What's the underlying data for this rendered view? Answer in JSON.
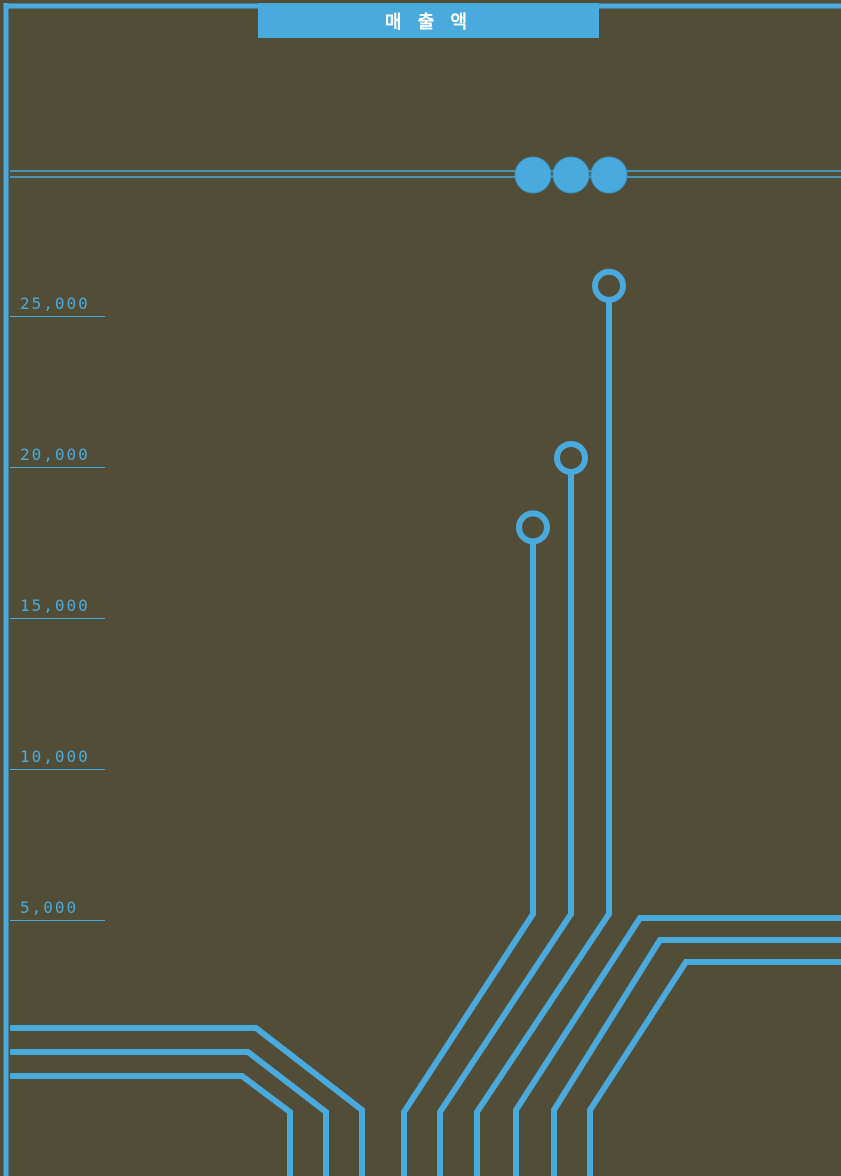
{
  "chart_data": {
    "type": "bar",
    "title": "매 출 액",
    "categories": [
      "",
      "",
      ""
    ],
    "values": [
      18000,
      20300,
      26000
    ],
    "yticks": [
      "5,000",
      "10,000",
      "15,000",
      "20,000",
      "25,000"
    ],
    "ytick_values": [
      5000,
      10000,
      15000,
      20000,
      25000
    ],
    "ylim": [
      0,
      30000
    ],
    "grid": false
  },
  "colors": {
    "background": "#514d36",
    "accent": "#4aaadd"
  }
}
